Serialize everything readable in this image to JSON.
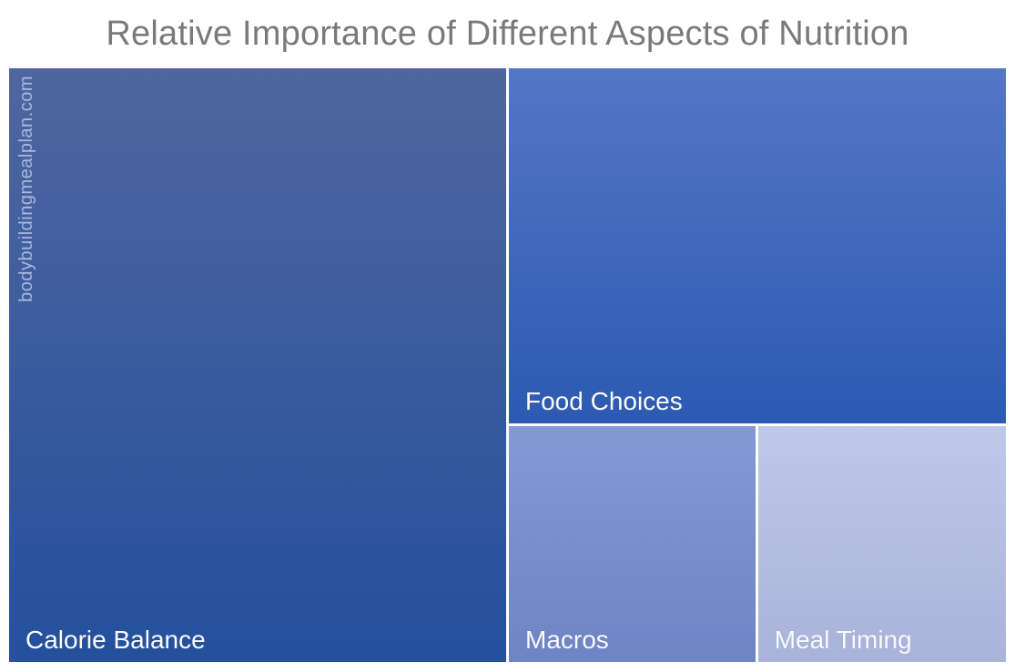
{
  "title": "Relative Importance of Different Aspects of Nutrition",
  "watermark": "bodybuildingmealplan.com",
  "colors": {
    "background": "#ffffff",
    "title_text": "#7a7a7a",
    "tile_label_text": "#fbfbfb",
    "watermark_text": "#a9b9e0",
    "tile_gap": "#ffffff"
  },
  "chart_data": {
    "type": "treemap",
    "title": "Relative Importance of Different Aspects of Nutrition",
    "categories": [
      "Calorie Balance",
      "Food Choices",
      "Macros",
      "Meal Timing"
    ],
    "values": [
      50,
      30,
      10,
      10
    ],
    "legend": "none",
    "data_labels": "category names only, bottom-left of each tile",
    "tiles": [
      {
        "label": "Calorie Balance",
        "value": 50,
        "color_top": "#4F66A0",
        "color_bottom": "#24509C"
      },
      {
        "label": "Food Choices",
        "value": 30,
        "color_top": "#5476C6",
        "color_bottom": "#2C5AB2"
      },
      {
        "label": "Macros",
        "value": 10,
        "color_top": "#8499D6",
        "color_bottom": "#6E84C4"
      },
      {
        "label": "Meal Timing",
        "value": 10,
        "color_top": "#BFC8E9",
        "color_bottom": "#A9B3DA"
      }
    ]
  }
}
